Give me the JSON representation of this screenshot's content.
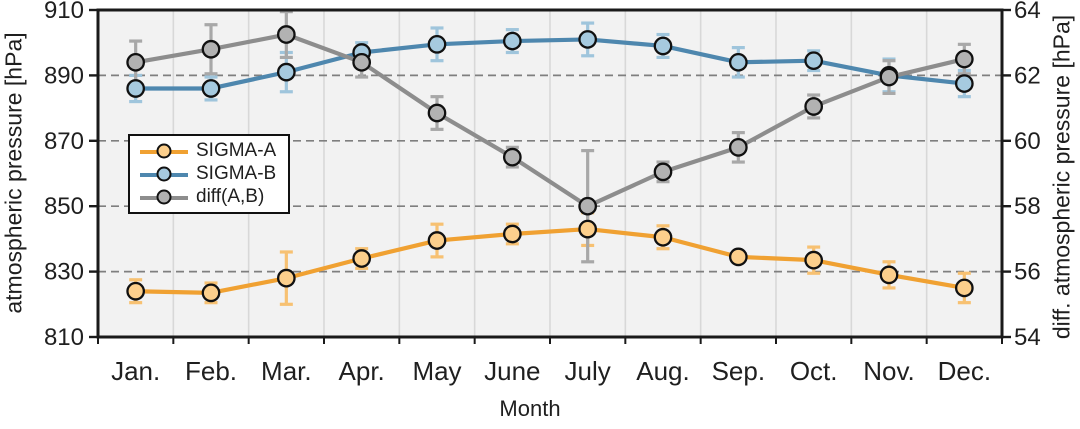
{
  "chart_data": {
    "type": "line",
    "categories": [
      "Jan.",
      "Feb.",
      "Mar.",
      "Apr.",
      "May",
      "June",
      "July",
      "Aug.",
      "Sep.",
      "Oct.",
      "Nov.",
      "Dec."
    ],
    "series": [
      {
        "name": "SIGMA-A",
        "axis": "left",
        "values": [
          824,
          823.5,
          828,
          834,
          839.5,
          841.5,
          843,
          840.5,
          834.5,
          833.5,
          829,
          825
        ],
        "errors": [
          3.5,
          3,
          8,
          3,
          5,
          3,
          5,
          3.5,
          1.5,
          4,
          4,
          4.5
        ],
        "line_color": "#F0A132",
        "marker_fill": "#FCCF8C",
        "error_color": "#F7C172"
      },
      {
        "name": "SIGMA-B",
        "axis": "left",
        "values": [
          886,
          886,
          891,
          897,
          899.5,
          900.5,
          901,
          899,
          894,
          894.5,
          890,
          887.5
        ],
        "errors": [
          4,
          3.5,
          6,
          3,
          5,
          3.5,
          5,
          3.5,
          4.5,
          3,
          5,
          4
        ],
        "line_color": "#4E87AE",
        "marker_fill": "#A6CADF",
        "error_color": "#9FC5DC"
      },
      {
        "name": "diff(A,B)",
        "axis": "right",
        "values": [
          62.4,
          62.8,
          63.25,
          62.4,
          60.85,
          59.5,
          58,
          59.05,
          59.8,
          61.05,
          61.95,
          62.5
        ],
        "errors": [
          0.65,
          0.75,
          0.7,
          0.45,
          0.5,
          0.3,
          1.7,
          0.3,
          0.45,
          0.35,
          0.5,
          0.45
        ],
        "line_color": "#8D8D8D",
        "marker_fill": "#B2B2B2",
        "error_color": "#A8A8A8"
      }
    ],
    "x_axis": {
      "title": "Month"
    },
    "left_axis": {
      "title": "atmospheric pressure [hPa]",
      "min": 810,
      "max": 910,
      "ticks": [
        910,
        890,
        870,
        850,
        830,
        810
      ]
    },
    "right_axis": {
      "title": "diff. atmospheric pressure [hPa]",
      "min": 54,
      "max": 64,
      "ticks": [
        64,
        62,
        60,
        58,
        56,
        54
      ]
    },
    "gridlines": {
      "horizontal_dashed_at_left_values": [
        890,
        870,
        850,
        830
      ],
      "vertical_at_category_boundaries": true
    },
    "legend": {
      "position": "upper-left-inside",
      "entries": [
        "SIGMA-A",
        "SIGMA-B",
        "diff(A,B)"
      ]
    }
  },
  "colors": {
    "plot_bg": "#F2F2F2",
    "page_bg": "#FFFFFF",
    "border": "#1A1A1A",
    "h_gridline": "#7F7F7F",
    "v_gridline": "#D8D8D8",
    "text": "#1F1F1F",
    "marker_outline": "#111111"
  }
}
